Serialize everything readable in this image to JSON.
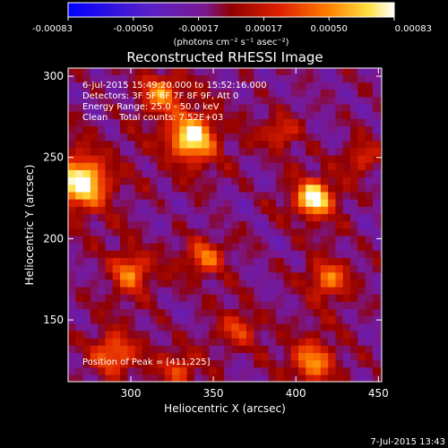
{
  "chart_data": {
    "type": "heatmap",
    "title": "Reconstructed RHESSI Image",
    "xlabel": "Heliocentric X (arcsec)",
    "ylabel": "Heliocentric Y (arcsec)",
    "xlim": [
      262,
      452
    ],
    "ylim": [
      112,
      305
    ],
    "xticks": [
      300,
      350,
      400,
      450
    ],
    "yticks": [
      150,
      200,
      250,
      300
    ],
    "colorbar": {
      "range": [
        -0.00083,
        0.00083
      ],
      "ticks": [
        "-0.00083",
        "-0.00050",
        "-0.00017",
        "0.00017",
        "0.00050",
        "0.00083"
      ],
      "unit_label": "(photons cm⁻² s⁻¹ asec⁻²)",
      "colormap": "blue-purple-red-yellow-white"
    },
    "annotations": [
      "6-Jul-2015 15:49:20.000 to 15:52:16.000",
      "Detectors: 3F 5F 6F 7F 8F 9F, Att 0",
      "Energy Range: 25.0 - 50.0 keV",
      "Clean    Total counts: 7.52E+03"
    ],
    "peak_label": "Position of Peak = [411,225]",
    "peak": [
      411,
      225
    ],
    "sources": [
      {
        "x": 411,
        "y": 225,
        "amp": 1.0,
        "sigma": 9
      },
      {
        "x": 270,
        "y": 235,
        "amp": 0.95,
        "sigma": 13
      },
      {
        "x": 337,
        "y": 262,
        "amp": 0.9,
        "sigma": 12
      },
      {
        "x": 318,
        "y": 290,
        "amp": 0.55,
        "sigma": 10
      },
      {
        "x": 345,
        "y": 188,
        "amp": 0.55,
        "sigma": 9
      },
      {
        "x": 300,
        "y": 180,
        "amp": 0.6,
        "sigma": 10
      },
      {
        "x": 290,
        "y": 130,
        "amp": 0.55,
        "sigma": 11
      },
      {
        "x": 410,
        "y": 125,
        "amp": 0.6,
        "sigma": 11
      },
      {
        "x": 420,
        "y": 175,
        "amp": 0.55,
        "sigma": 10
      },
      {
        "x": 365,
        "y": 145,
        "amp": 0.45,
        "sigma": 9
      },
      {
        "x": 390,
        "y": 265,
        "amp": 0.45,
        "sigma": 8
      },
      {
        "x": 440,
        "y": 250,
        "amp": 0.4,
        "sigma": 8
      },
      {
        "x": 330,
        "y": 120,
        "amp": 0.45,
        "sigma": 9
      }
    ]
  },
  "footer": {
    "timestamp": "7-Jul-2015 13:43"
  }
}
